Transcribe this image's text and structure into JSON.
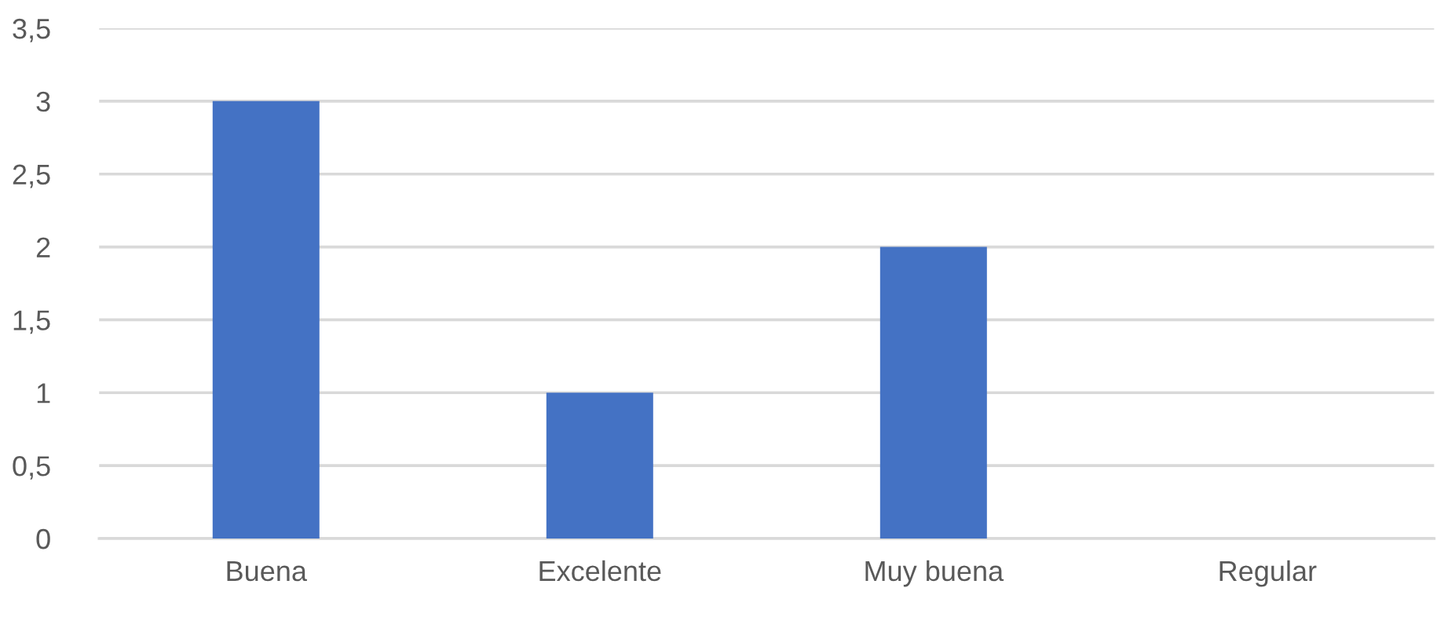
{
  "chart_data": {
    "type": "bar",
    "categories": [
      "Buena",
      "Excelente",
      "Muy buena",
      "Regular"
    ],
    "values": [
      3,
      1,
      2,
      0
    ],
    "color": "#4472c4",
    "ylim": [
      0,
      3.5
    ],
    "yticks": [
      0,
      {
        "value": 0.5,
        "label": "0,5"
      },
      1,
      {
        "value": 1.5,
        "label": "1,5"
      },
      2,
      {
        "value": 2.5,
        "label": "2,5"
      },
      3,
      {
        "value": 3.5,
        "label": "3,5"
      }
    ],
    "grid": "y",
    "legend": false
  }
}
